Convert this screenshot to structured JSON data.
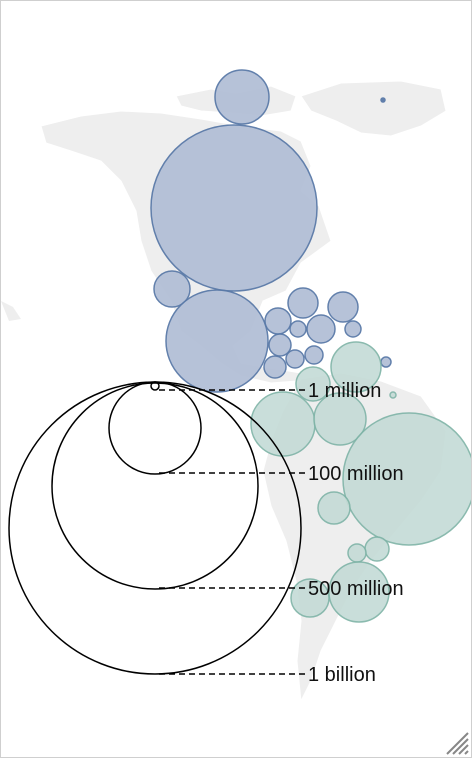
{
  "map": {
    "colors": {
      "land": "#eeeeee",
      "land_border": "#ffffff",
      "north_america_fill": "#b3bfd6",
      "north_america_stroke": "#5a7aa8",
      "south_america_fill": "#c4dbd6",
      "south_america_stroke": "#7eb3a6",
      "legend_stroke": "#000000"
    }
  },
  "legend": {
    "items": [
      {
        "label": "1 million"
      },
      {
        "label": "100 million"
      },
      {
        "label": "500 million"
      },
      {
        "label": "1 billion"
      }
    ]
  },
  "ui": {
    "resize_handle": "resize-grip-icon"
  }
}
